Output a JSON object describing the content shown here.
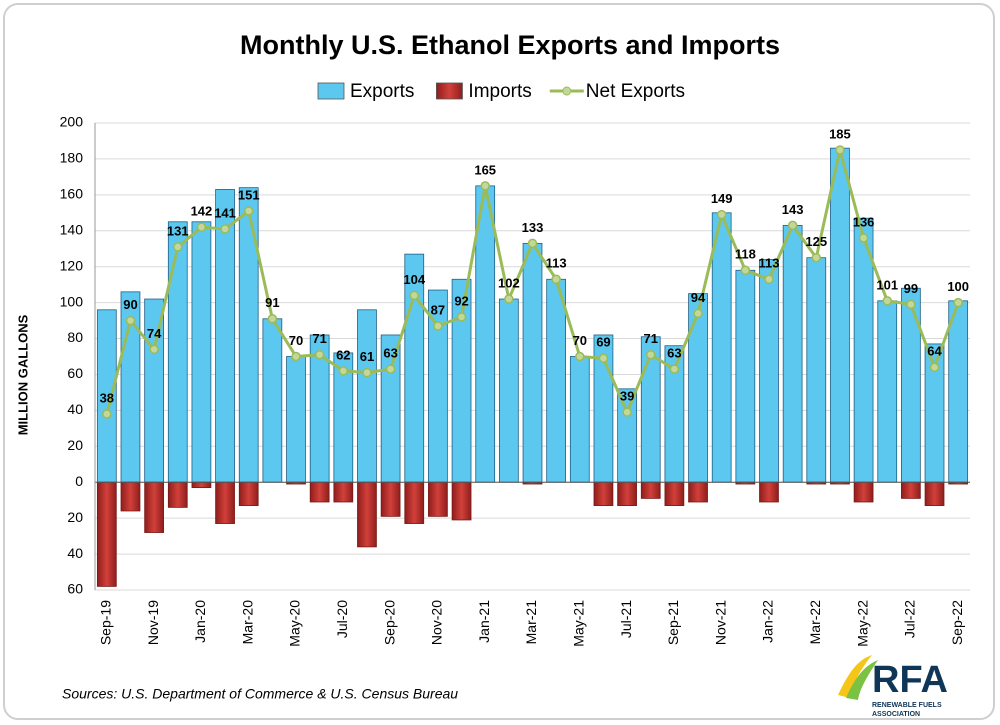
{
  "chart_data": {
    "type": "bar_line",
    "title": "Monthly U.S. Ethanol Exports and Imports",
    "y_label": "MILLION GALLONS",
    "source": "Sources: U.S. Department of Commerce & U.S. Census Bureau",
    "categories": [
      "Sep-19",
      null,
      "Nov-19",
      null,
      "Jan-20",
      null,
      "Mar-20",
      null,
      "May-20",
      null,
      "Jul-20",
      null,
      "Sep-20",
      null,
      "Nov-20",
      null,
      "Jan-21",
      null,
      "Mar-21",
      null,
      "May-21",
      null,
      "Jul-21",
      null,
      "Sep-21",
      null,
      "Nov-21",
      null,
      "Jan-22",
      null,
      "Mar-22",
      null,
      "May-22",
      null,
      "Jul-22",
      null,
      "Sep-22"
    ],
    "series": [
      {
        "name": "Exports",
        "color": "#5cc8ef",
        "kind": "bar",
        "values": [
          96,
          106,
          102,
          145,
          145,
          163,
          164,
          91,
          70,
          82,
          72,
          96,
          82,
          127,
          107,
          113,
          165,
          102,
          133,
          113,
          70,
          82,
          52,
          81,
          76,
          105,
          150,
          118,
          124,
          143,
          125,
          186,
          147,
          101,
          108,
          77,
          101
        ]
      },
      {
        "name": "Imports",
        "color": "#c0302c",
        "kind": "bar",
        "values": [
          -58,
          -16,
          -28,
          -14,
          -3,
          -23,
          -13,
          0,
          -1,
          -11,
          -11,
          -36,
          -19,
          -23,
          -19,
          -21,
          0,
          0,
          -1,
          0,
          0,
          -13,
          -13,
          -9,
          -13,
          -11,
          0,
          -1,
          -11,
          0,
          -1,
          -1,
          -11,
          0,
          -9,
          -13,
          -1
        ]
      },
      {
        "name": "Net Exports",
        "color": "#9bbb59",
        "kind": "line",
        "values": [
          38,
          90,
          74,
          131,
          142,
          141,
          151,
          91,
          70,
          71,
          62,
          61,
          63,
          104,
          87,
          92,
          165,
          102,
          133,
          113,
          70,
          69,
          39,
          71,
          63,
          94,
          149,
          118,
          113,
          143,
          125,
          185,
          136,
          101,
          99,
          64,
          100
        ]
      }
    ],
    "ylim": [
      -60,
      200
    ],
    "yticks": [
      {
        "value": -60,
        "label": "60"
      },
      {
        "value": -40,
        "label": "40"
      },
      {
        "value": -20,
        "label": "20"
      },
      0,
      20,
      40,
      60,
      80,
      100,
      120,
      140,
      160,
      180,
      200
    ],
    "grid": true
  },
  "logo": {
    "name": "RFA",
    "subtitle": [
      "RENEWABLE FUELS",
      "ASSOCIATION"
    ]
  }
}
